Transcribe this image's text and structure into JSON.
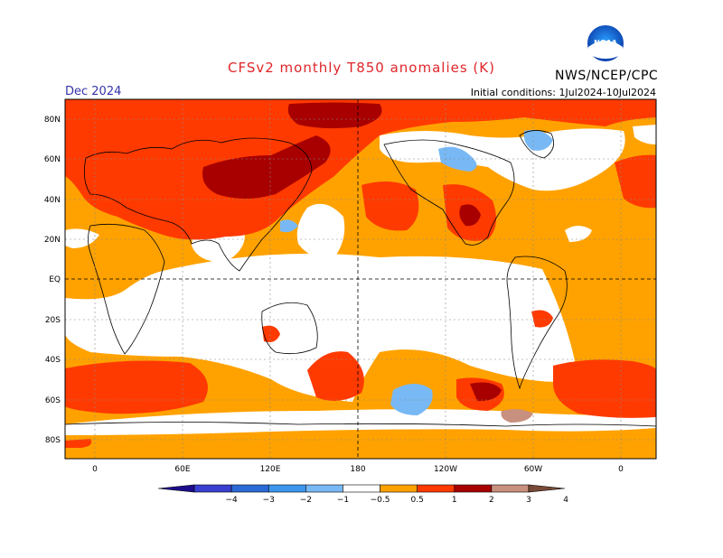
{
  "header": {
    "title": "CFSv2 monthly T850 anomalies (K)",
    "agency": "NWS/NCEP/CPC",
    "logo_text": "NOAA",
    "valid_month": "Dec 2024",
    "initial_conditions": "Initial conditions: 1Jul2024-10Jul2024"
  },
  "map": {
    "lat_labels": [
      "80N",
      "60N",
      "40N",
      "20N",
      "EQ",
      "20S",
      "40S",
      "60S",
      "80S"
    ],
    "lon_labels": [
      "0",
      "60E",
      "120E",
      "180",
      "120W",
      "60W",
      "0"
    ]
  },
  "colorbar": {
    "labels": [
      "-4",
      "-3",
      "-2",
      "-1",
      "-0.5",
      "0.5",
      "1",
      "2",
      "3",
      "4"
    ],
    "colors": [
      "#1d0d8c",
      "#3a3fd1",
      "#2a6ad8",
      "#3c96ee",
      "#78b9f5",
      "#ffffff",
      "#ffa200",
      "#ff3a00",
      "#a80000",
      "#c8907e",
      "#7a4a38"
    ]
  }
}
